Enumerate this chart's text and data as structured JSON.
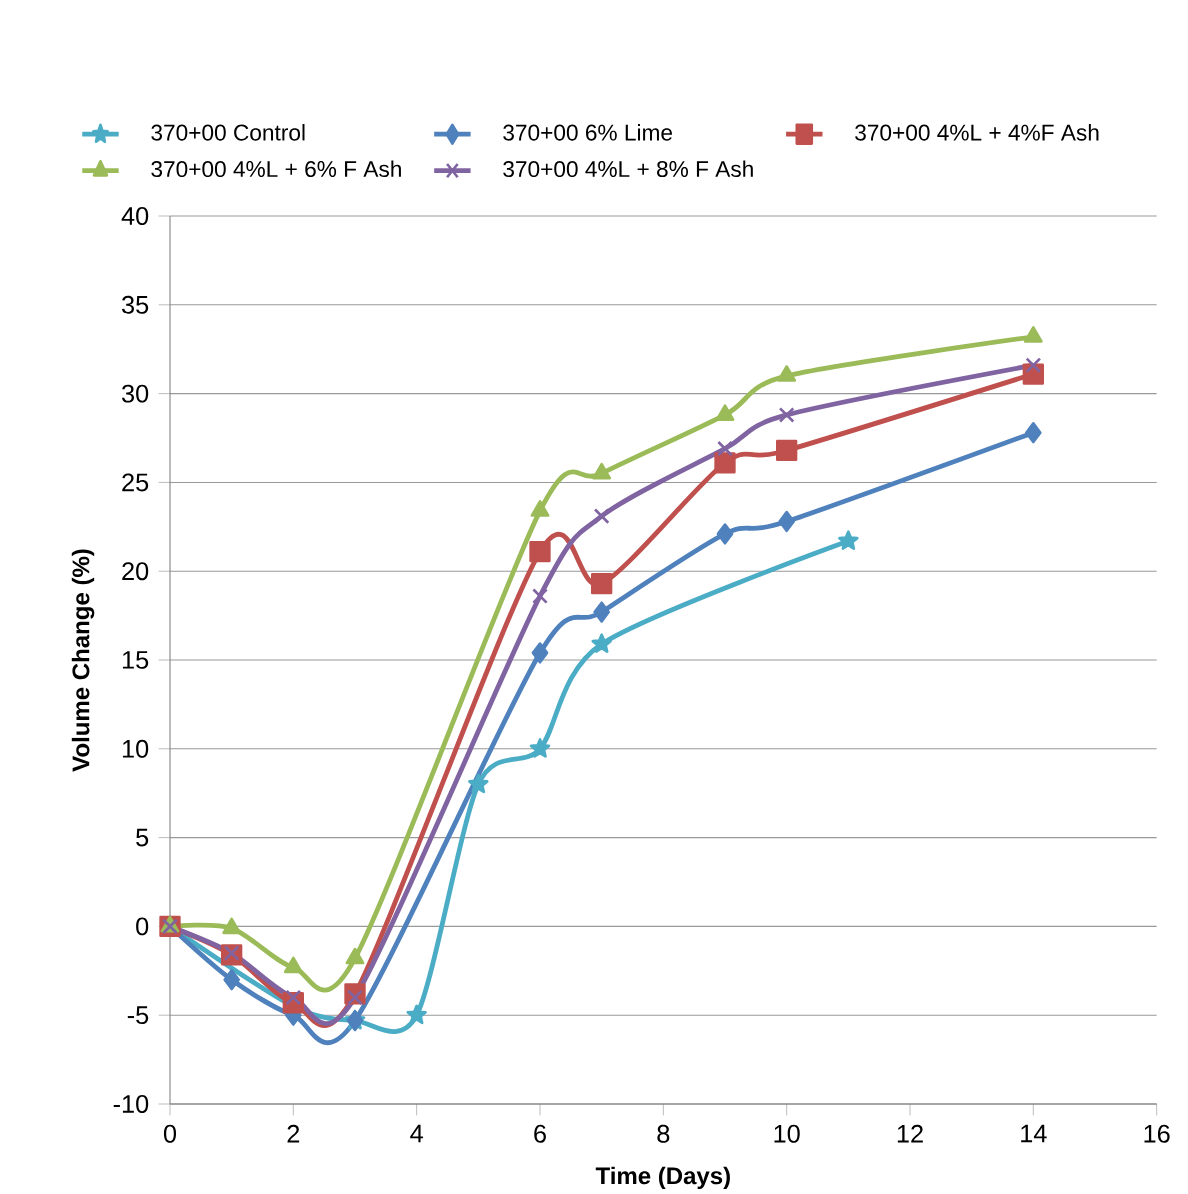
{
  "chart_data": {
    "type": "line",
    "xlabel": "Time (Days)",
    "ylabel": "Volume Change (%)",
    "xlim": [
      0,
      16
    ],
    "xticks": [
      0,
      2,
      4,
      6,
      8,
      10,
      12,
      14,
      16
    ],
    "ylim": [
      -10,
      40
    ],
    "yticks": [
      -10,
      -5,
      0,
      5,
      10,
      15,
      20,
      25,
      30,
      35,
      40
    ],
    "grid": "y",
    "legend": "top",
    "line_style": "solid",
    "series": [
      {
        "name": "370+00 Control",
        "color": "#4bacc6",
        "marker": "star",
        "x": [
          0,
          1,
          2,
          3,
          4,
          5,
          6,
          7,
          11
        ],
        "values": [
          0,
          null,
          -4.5,
          -5.3,
          -5,
          8,
          10,
          15.9,
          21.7
        ]
      },
      {
        "name": "370+00 6% Lime",
        "color": "#4f81bd",
        "marker": "diamond",
        "x": [
          0,
          1,
          2,
          3,
          6,
          7,
          9,
          10,
          14
        ],
        "values": [
          0,
          -3,
          -5,
          -5.3,
          15.4,
          17.7,
          22.1,
          22.8,
          27.8
        ]
      },
      {
        "name": "370+00 4%L + 4%F Ash",
        "color": "#c0504d",
        "marker": "square",
        "x": [
          0,
          1,
          2,
          3,
          6,
          7,
          9,
          10,
          14
        ],
        "values": [
          0,
          -1.6,
          -4.3,
          -3.8,
          21.1,
          19.3,
          26.1,
          26.8,
          31.1
        ]
      },
      {
        "name": "370+00 4%L + 6% F Ash",
        "color": "#9bbb59",
        "marker": "triangle",
        "x": [
          0,
          1,
          2,
          3,
          6,
          7,
          9,
          10,
          14
        ],
        "values": [
          0,
          -0.1,
          -2.3,
          -1.8,
          23.4,
          25.5,
          28.8,
          31,
          33.2
        ]
      },
      {
        "name": "370+00 4%L + 8% F Ash",
        "color": "#8064a2",
        "marker": "cross",
        "x": [
          0,
          1,
          2,
          3,
          6,
          7,
          9,
          10,
          14
        ],
        "values": [
          0,
          -1.5,
          -4,
          -4,
          18.6,
          23.1,
          26.9,
          28.8,
          31.6
        ]
      }
    ]
  }
}
